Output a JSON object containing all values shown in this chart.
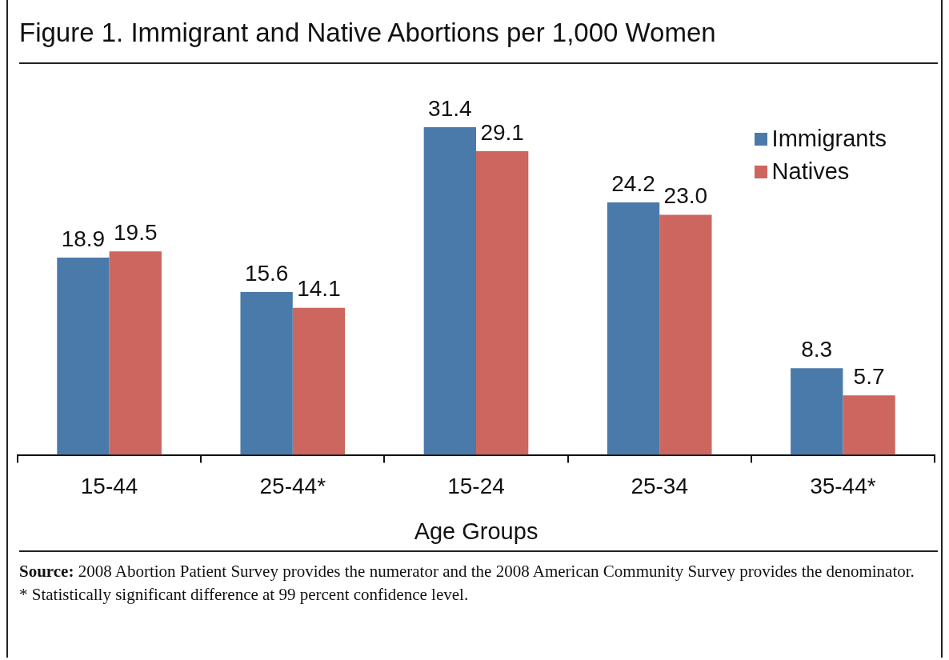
{
  "chart_data": {
    "type": "bar",
    "title": "Figure 1. Immigrant and Native Abortions per 1,000 Women",
    "xlabel": "Age Groups",
    "categories": [
      "15-44",
      "25-44*",
      "15-24",
      "25-34",
      "35-44*"
    ],
    "series": [
      {
        "name": "Immigrants",
        "color": "#4a7aaa",
        "values": [
          18.9,
          15.6,
          31.4,
          24.2,
          8.3
        ],
        "value_labels": [
          "18.9",
          "15.6",
          "31.4",
          "24.2",
          "8.3"
        ]
      },
      {
        "name": "Natives",
        "color": "#cd665e",
        "values": [
          19.5,
          14.1,
          29.1,
          23.0,
          5.7
        ],
        "value_labels": [
          "19.5",
          "14.1",
          "29.1",
          "23.0",
          "5.7"
        ]
      }
    ],
    "legend": "top right",
    "annotations": [
      "Source: 2008 Abortion Patient Survey provides the numerator and the 2008 American Community Survey provides the denominator.",
      "* Statistically significant difference at 99 percent confidence level."
    ]
  }
}
